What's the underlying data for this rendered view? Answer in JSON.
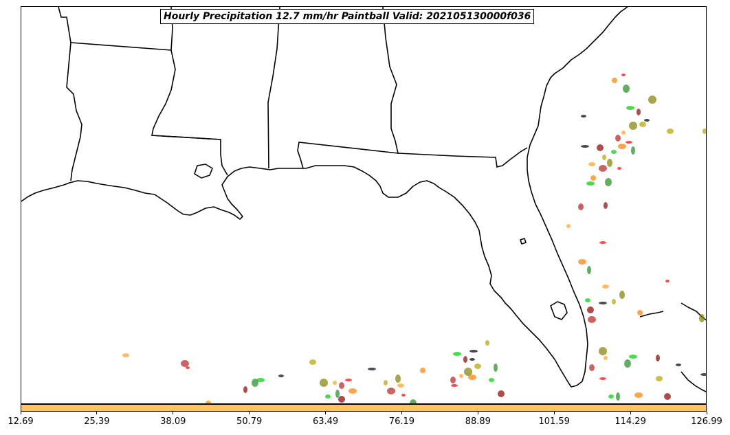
{
  "title": "Hourly Precipitation 12.7 mm/hr Paintball Valid: 202105130000f036",
  "colorbar": {
    "color": "#fdc364",
    "ticks": [
      "12.69",
      "25.39",
      "38.09",
      "50.79",
      "63.49",
      "76.19",
      "88.89",
      "101.59",
      "114.29",
      "126.99"
    ]
  },
  "member_colors": [
    "#ff0000",
    "#ff7f00",
    "#228b22",
    "#00cc00",
    "#8b0000",
    "#000000",
    "#b5a300",
    "#808000",
    "#ff9f1c",
    "#b22222"
  ]
}
